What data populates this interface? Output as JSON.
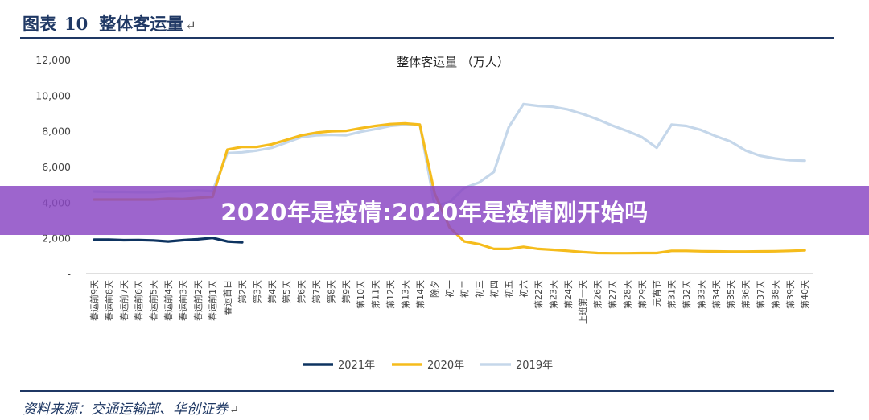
{
  "header": {
    "prefix": "图表",
    "number": "10",
    "title": "整体客运量",
    "return_mark": "↵"
  },
  "source": {
    "text": "资料来源：交通运输部、华创证券",
    "return_mark": "↵"
  },
  "banner": {
    "text": "2020年是疫情:2020年是疫情刚开始吗"
  },
  "colors": {
    "series_2021": "#0d3360",
    "series_2020": "#f5bc1c",
    "series_2019": "#c5d7ea",
    "header": "#1f3864",
    "banner": "#8a48c4"
  },
  "chart_data": {
    "type": "line",
    "title": "整体客运量 （万人）",
    "xlabel": "",
    "ylabel": "",
    "ylim": [
      0,
      12000
    ],
    "yticks": [
      {
        "value": 0,
        "label": "-"
      },
      {
        "value": 2000,
        "label": "2,000"
      },
      {
        "value": 4000,
        "label": "4,000"
      },
      {
        "value": 6000,
        "label": "6,000"
      },
      {
        "value": 8000,
        "label": "8,000"
      },
      {
        "value": 10000,
        "label": "10,000"
      },
      {
        "value": 12000,
        "label": "12,000"
      }
    ],
    "grid": false,
    "legend_position": "bottom",
    "categories": [
      "春运前9天",
      "春运前8天",
      "春运前7天",
      "春运前6天",
      "春运前5天",
      "春运前4天",
      "春运前3天",
      "春运前2天",
      "春运前1天",
      "春运首日",
      "第2天",
      "第3天",
      "第4天",
      "第5天",
      "第6天",
      "第7天",
      "第8天",
      "第9天",
      "第10天",
      "第11天",
      "第12天",
      "第13天",
      "第14天",
      "除夕",
      "初一",
      "初二",
      "初三",
      "初四",
      "初五",
      "初六",
      "第22天",
      "第23天",
      "第24天",
      "上班第一天",
      "第26天",
      "第27天",
      "第28天",
      "第29天",
      "元宵节",
      "第31天",
      "第32天",
      "第33天",
      "第34天",
      "第35天",
      "第36天",
      "第37天",
      "第38天",
      "第39天",
      "第40天"
    ],
    "series": [
      {
        "name": "2021年",
        "color": "#0d3360",
        "values": [
          1900,
          1900,
          1870,
          1880,
          1860,
          1800,
          1870,
          1920,
          2000,
          1800,
          1750,
          null,
          null,
          null,
          null,
          null,
          null,
          null,
          null,
          null,
          null,
          null,
          null,
          null,
          null,
          null,
          null,
          null,
          null,
          null,
          null,
          null,
          null,
          null,
          null,
          null,
          null,
          null,
          null,
          null,
          null,
          null,
          null,
          null,
          null,
          null,
          null,
          null,
          null
        ]
      },
      {
        "name": "2020年",
        "color": "#f5bc1c",
        "values": [
          4150,
          4150,
          4150,
          4150,
          4150,
          4200,
          4180,
          4250,
          4300,
          6950,
          7100,
          7100,
          7250,
          7500,
          7750,
          7900,
          7980,
          8000,
          8150,
          8280,
          8380,
          8420,
          8350,
          4500,
          2600,
          1800,
          1650,
          1380,
          1380,
          1500,
          1380,
          1330,
          1270,
          1200,
          1150,
          1140,
          1140,
          1150,
          1150,
          1270,
          1270,
          1250,
          1240,
          1230,
          1230,
          1240,
          1250,
          1270,
          1300
        ]
      },
      {
        "name": "2019年",
        "color": "#c5d7ea",
        "values": [
          4600,
          4580,
          4580,
          4560,
          4560,
          4600,
          4620,
          4650,
          4620,
          6750,
          6800,
          6900,
          7050,
          7350,
          7650,
          7750,
          7780,
          7750,
          7950,
          8100,
          8280,
          8350,
          8350,
          3800,
          4000,
          4800,
          5100,
          5700,
          8200,
          9500,
          9400,
          9350,
          9200,
          8950,
          8650,
          8300,
          8000,
          7650,
          7050,
          8350,
          8280,
          8050,
          7700,
          7400,
          6900,
          6600,
          6450,
          6350,
          6330
        ]
      }
    ]
  }
}
